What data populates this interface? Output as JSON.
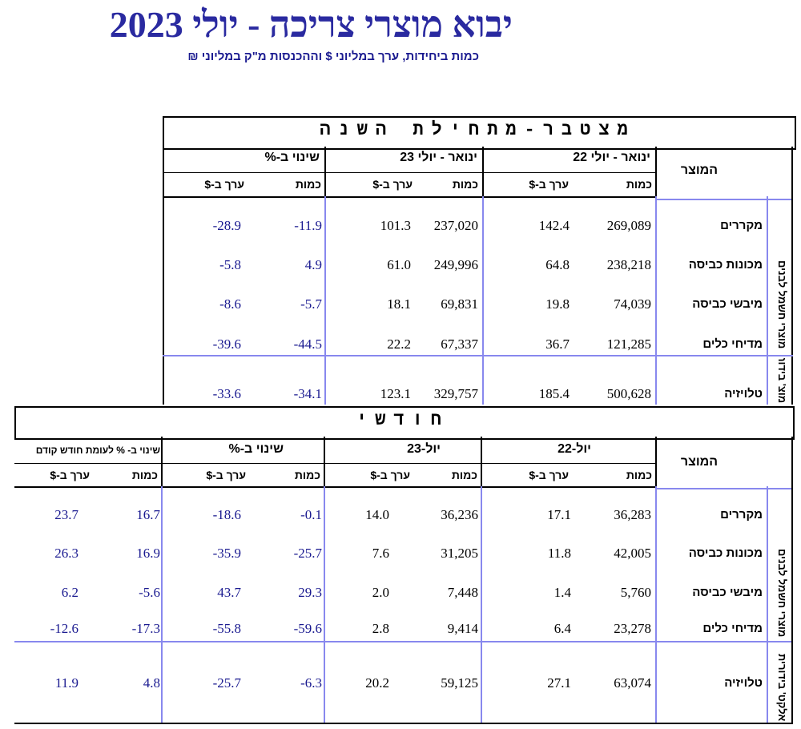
{
  "title": "יבוא מוצרי צריכה - יולי 2023",
  "subtitle": "כמות ביחידות, ערך במליוני $ וההכנסות מ\"ק במליוני ₪",
  "ytd": {
    "banner": "מצטבר-מתחילת השנה",
    "product_header": "המוצר",
    "period1": "ינואר - יולי 22",
    "period2": "ינואר - יולי 23",
    "change": "שינוי ב-%",
    "qty": "כמות",
    "val": "ערך ב-$",
    "category1": "מוצרי חשמל לבנים",
    "category2": "מוצ' בידור",
    "rows": [
      {
        "name": "מקררים",
        "q22": "269,089",
        "v22": "142.4",
        "q23": "237,020",
        "v23": "101.3",
        "cq": "-11.9",
        "cv": "-28.9"
      },
      {
        "name": "מכונות כביסה",
        "q22": "238,218",
        "v22": "64.8",
        "q23": "249,996",
        "v23": "61.0",
        "cq": "4.9",
        "cv": "-5.8"
      },
      {
        "name": "מיבשי כביסה",
        "q22": "74,039",
        "v22": "19.8",
        "q23": "69,831",
        "v23": "18.1",
        "cq": "-5.7",
        "cv": "-8.6"
      },
      {
        "name": "מדיחי כלים",
        "q22": "121,285",
        "v22": "36.7",
        "q23": "67,337",
        "v23": "22.2",
        "cq": "-44.5",
        "cv": "-39.6"
      },
      {
        "name": "טלויזיה",
        "q22": "500,628",
        "v22": "185.4",
        "q23": "329,757",
        "v23": "123.1",
        "cq": "-34.1",
        "cv": "-33.6"
      }
    ]
  },
  "monthly": {
    "banner": "חודשי",
    "product_header": "המוצר",
    "period1": "יול-22",
    "period2": "יול-23",
    "change": "שינוי ב-%",
    "prev_change": "שינוי ב- % לעומת חודש קודם",
    "qty": "כמות",
    "val": "ערך ב-$",
    "category1": "מוצרי חשמל לבנים",
    "category2": "אלקט' בידורית",
    "rows": [
      {
        "name": "מקררים",
        "q22": "36,283",
        "v22": "17.1",
        "q23": "36,236",
        "v23": "14.0",
        "cq": "-0.1",
        "cv": "-18.6",
        "pq": "16.7",
        "pv": "23.7"
      },
      {
        "name": "מכונות כביסה",
        "q22": "42,005",
        "v22": "11.8",
        "q23": "31,205",
        "v23": "7.6",
        "cq": "-25.7",
        "cv": "-35.9",
        "pq": "16.9",
        "pv": "26.3"
      },
      {
        "name": "מיבשי כביסה",
        "q22": "5,760",
        "v22": "1.4",
        "q23": "7,448",
        "v23": "2.0",
        "cq": "29.3",
        "cv": "43.7",
        "pq": "-5.6",
        "pv": "6.2"
      },
      {
        "name": "מדיחי כלים",
        "q22": "23,278",
        "v22": "6.4",
        "q23": "9,414",
        "v23": "2.8",
        "cq": "-59.6",
        "cv": "-55.8",
        "pq": "-17.3",
        "pv": "-12.6"
      },
      {
        "name": "טלויזיה",
        "q22": "63,074",
        "v22": "27.1",
        "q23": "59,125",
        "v23": "20.2",
        "cq": "-6.3",
        "cv": "-25.7",
        "pq": "4.8",
        "pv": "11.9"
      }
    ]
  }
}
